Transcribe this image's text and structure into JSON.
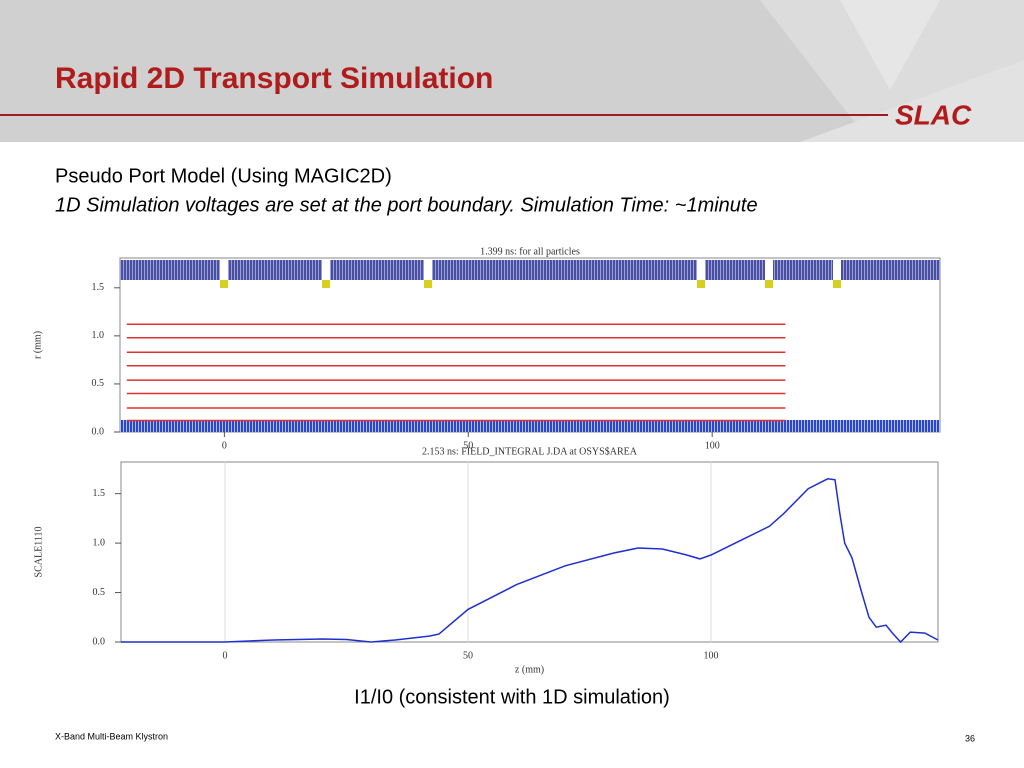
{
  "header": {
    "title": "Rapid 2D Transport Simulation",
    "logo": "SLAC"
  },
  "subtitle": {
    "line1": "Pseudo Port Model (Using MAGIC2D)",
    "line2": "1D Simulation voltages are set at the port boundary.  Simulation Time:  ~1minute"
  },
  "chart_data": [
    {
      "type": "line",
      "title": "1.399 ns:   for all particles",
      "ylabel": "r (mm)",
      "x": [
        -20,
        115
      ],
      "series": [
        {
          "color": "#e03030",
          "values": [
            0.12,
            0.12
          ]
        },
        {
          "color": "#e03030",
          "values": [
            0.25,
            0.25
          ]
        },
        {
          "color": "#e03030",
          "values": [
            0.4,
            0.4
          ]
        },
        {
          "color": "#e03030",
          "values": [
            0.54,
            0.54
          ]
        },
        {
          "color": "#e03030",
          "values": [
            0.69,
            0.69
          ]
        },
        {
          "color": "#e03030",
          "values": [
            0.83,
            0.83
          ]
        },
        {
          "color": "#e03030",
          "values": [
            0.98,
            0.98
          ]
        },
        {
          "color": "#e03030",
          "values": [
            1.12,
            1.12
          ]
        }
      ],
      "xlim": [
        -21.4,
        146.7
      ],
      "xticks": [
        0,
        50,
        100
      ],
      "ylim": [
        0,
        1.81
      ],
      "yticks": [
        {
          "value": 0,
          "label": "0.0"
        },
        {
          "value": 0.5,
          "label": "0.5"
        },
        {
          "value": 1,
          "label": "1.0"
        },
        {
          "value": 1.5,
          "label": "1.5"
        }
      ],
      "grid": false
    },
    {
      "type": "line",
      "title": "2.153 ns:  FIELD_INTEGRAL J.DA at OSYS$AREA",
      "xlabel": "z (mm)",
      "ylabel": "SCALE1110",
      "x": [
        -21.4,
        0,
        10,
        20,
        25,
        30,
        35,
        42,
        44,
        50,
        60,
        70,
        80,
        85,
        90,
        95,
        97.7,
        100,
        105,
        112,
        115,
        120,
        124,
        125.5,
        126.5,
        127.5,
        129,
        131,
        132.5,
        134,
        136,
        137.5,
        139,
        141,
        144,
        146.7
      ],
      "series": [
        {
          "color": "#1f2fd0",
          "values": [
            0,
            0,
            0.02,
            0.03,
            0.025,
            0,
            0.02,
            0.06,
            0.08,
            0.33,
            0.58,
            0.77,
            0.9,
            0.95,
            0.94,
            0.88,
            0.84,
            0.88,
            1.0,
            1.17,
            1.3,
            1.55,
            1.65,
            1.64,
            1.3,
            1.0,
            0.85,
            0.5,
            0.25,
            0.15,
            0.17,
            0.08,
            0,
            0.1,
            0.09,
            0.02
          ]
        }
      ],
      "xlim": [
        -21.4,
        146.7
      ],
      "xticks": [
        0,
        50,
        100
      ],
      "ylim": [
        0,
        1.82
      ],
      "yticks": [
        {
          "value": 0,
          "label": "0.0"
        },
        {
          "value": 0.5,
          "label": "0.5"
        },
        {
          "value": 1,
          "label": "1.0"
        },
        {
          "value": 1.5,
          "label": "1.5"
        }
      ],
      "grid": true
    }
  ],
  "caption": "I1/I0 (consistent with 1D simulation)",
  "footer": {
    "left": "X-Band Multi-Beam Klystron",
    "page": "36"
  }
}
